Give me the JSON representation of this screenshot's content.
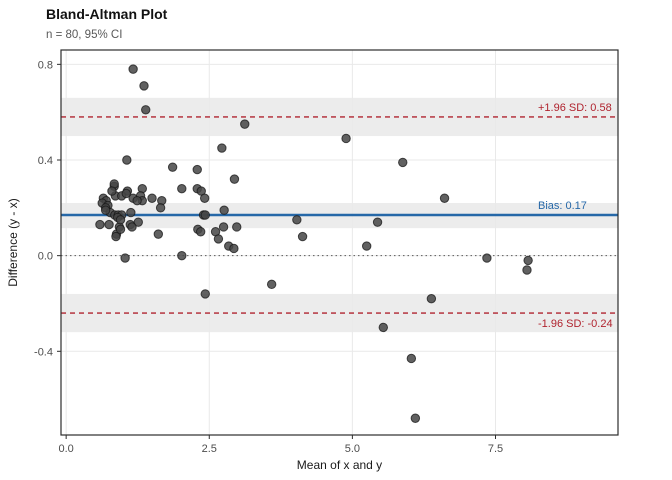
{
  "chart_data": {
    "type": "scatter",
    "title": "Bland-Altman Plot",
    "subtitle": "n = 80, 95% CI",
    "xlabel": "Mean of x and y",
    "ylabel": "Difference (y - x)",
    "xlim": [
      -0.09,
      9.64
    ],
    "ylim": [
      -0.75,
      0.86
    ],
    "x_ticks": [
      0.0,
      2.5,
      5.0,
      7.5
    ],
    "x_tick_labels": [
      "0.0",
      "2.5",
      "5.0",
      "7.5"
    ],
    "y_ticks": [
      0.8,
      0.4,
      0.0,
      -0.4
    ],
    "y_tick_labels": [
      "0.8",
      "0.4",
      "0.0",
      "-0.4"
    ],
    "grid": "major-only",
    "legend": "none",
    "zero_line": 0.0,
    "bias": {
      "value": 0.17,
      "label": "Bias: 0.17",
      "ci": [
        0.115,
        0.22
      ],
      "color": "#2668a8"
    },
    "upper_loa": {
      "value": 0.58,
      "label": "+1.96 SD: 0.58",
      "ci": [
        0.5,
        0.66
      ],
      "color": "#b0232e"
    },
    "lower_loa": {
      "value": -0.24,
      "label": "-1.96 SD: -0.24",
      "ci": [
        -0.32,
        -0.16
      ],
      "color": "#b0232e"
    },
    "ci_band_color": "#ececec",
    "grid_color": "#e9e9e9",
    "point_color": "#454545",
    "point_edge_color": "#161616",
    "points": [
      [
        1.17,
        0.78
      ],
      [
        1.36,
        0.71
      ],
      [
        1.39,
        0.61
      ],
      [
        3.12,
        0.55
      ],
      [
        2.72,
        0.45
      ],
      [
        1.06,
        0.4
      ],
      [
        1.86,
        0.37
      ],
      [
        2.29,
        0.36
      ],
      [
        2.94,
        0.32
      ],
      [
        4.89,
        0.49
      ],
      [
        5.88,
        0.39
      ],
      [
        6.61,
        0.24
      ],
      [
        4.03,
        0.15
      ],
      [
        5.44,
        0.14
      ],
      [
        4.13,
        0.08
      ],
      [
        5.25,
        0.04
      ],
      [
        3.59,
        -0.12
      ],
      [
        6.38,
        -0.18
      ],
      [
        5.54,
        -0.3
      ],
      [
        6.03,
        -0.43
      ],
      [
        6.1,
        -0.68
      ],
      [
        7.35,
        -0.01
      ],
      [
        8.07,
        -0.02
      ],
      [
        8.05,
        -0.06
      ],
      [
        1.03,
        -0.01
      ],
      [
        2.02,
        0.0
      ],
      [
        0.84,
        0.29
      ],
      [
        1.07,
        0.27
      ],
      [
        1.33,
        0.28
      ],
      [
        2.02,
        0.28
      ],
      [
        2.29,
        0.28
      ],
      [
        2.36,
        0.27
      ],
      [
        0.86,
        0.25
      ],
      [
        0.97,
        0.25
      ],
      [
        1.17,
        0.24
      ],
      [
        1.3,
        0.25
      ],
      [
        1.33,
        0.23
      ],
      [
        1.5,
        0.24
      ],
      [
        1.67,
        0.23
      ],
      [
        0.65,
        0.24
      ],
      [
        0.7,
        0.23
      ],
      [
        0.63,
        0.22
      ],
      [
        0.73,
        0.21
      ],
      [
        0.69,
        0.2
      ],
      [
        1.65,
        0.2
      ],
      [
        0.77,
        0.18
      ],
      [
        0.85,
        0.17
      ],
      [
        0.91,
        0.17
      ],
      [
        0.97,
        0.17
      ],
      [
        1.13,
        0.18
      ],
      [
        2.4,
        0.17
      ],
      [
        0.59,
        0.13
      ],
      [
        0.75,
        0.13
      ],
      [
        0.93,
        0.12
      ],
      [
        1.12,
        0.13
      ],
      [
        1.26,
        0.14
      ],
      [
        0.88,
        0.09
      ],
      [
        1.61,
        0.09
      ],
      [
        2.3,
        0.11
      ],
      [
        2.35,
        0.1
      ],
      [
        2.76,
        0.19
      ],
      [
        2.43,
        0.17
      ],
      [
        2.42,
        0.24
      ],
      [
        2.61,
        0.1
      ],
      [
        2.75,
        0.12
      ],
      [
        2.98,
        0.12
      ],
      [
        2.66,
        0.07
      ],
      [
        2.84,
        0.04
      ],
      [
        2.93,
        0.03
      ],
      [
        0.84,
        0.3
      ],
      [
        0.8,
        0.27
      ],
      [
        0.9,
        0.16
      ],
      [
        0.95,
        0.15
      ],
      [
        1.15,
        0.12
      ],
      [
        0.95,
        0.11
      ],
      [
        1.24,
        0.23
      ],
      [
        0.69,
        0.19
      ],
      [
        0.87,
        0.08
      ],
      [
        2.43,
        -0.16
      ],
      [
        1.05,
        0.26
      ]
    ]
  }
}
